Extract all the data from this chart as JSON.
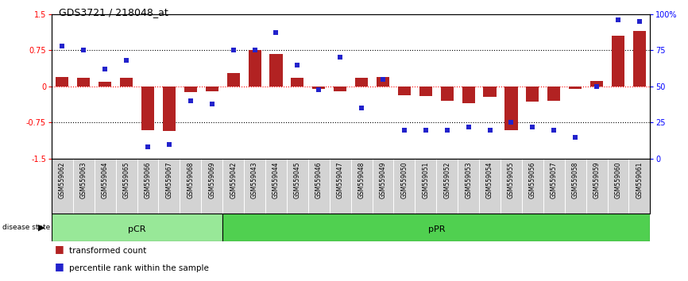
{
  "title": "GDS3721 / 218048_at",
  "samples": [
    "GSM559062",
    "GSM559063",
    "GSM559064",
    "GSM559065",
    "GSM559066",
    "GSM559067",
    "GSM559068",
    "GSM559069",
    "GSM559042",
    "GSM559043",
    "GSM559044",
    "GSM559045",
    "GSM559046",
    "GSM559047",
    "GSM559048",
    "GSM559049",
    "GSM559050",
    "GSM559051",
    "GSM559052",
    "GSM559053",
    "GSM559054",
    "GSM559055",
    "GSM559056",
    "GSM559057",
    "GSM559058",
    "GSM559059",
    "GSM559060",
    "GSM559061"
  ],
  "bar_values": [
    0.2,
    0.18,
    0.1,
    0.18,
    -0.9,
    -0.92,
    -0.12,
    -0.1,
    0.28,
    0.75,
    0.68,
    0.18,
    -0.05,
    -0.1,
    0.18,
    0.2,
    -0.18,
    -0.2,
    -0.3,
    -0.35,
    -0.22,
    -0.9,
    -0.32,
    -0.3,
    -0.05,
    0.12,
    1.05,
    1.15
  ],
  "percentile_values": [
    78,
    75,
    62,
    68,
    8,
    10,
    40,
    38,
    75,
    75,
    87,
    65,
    48,
    70,
    35,
    55,
    20,
    20,
    20,
    22,
    20,
    25,
    22,
    20,
    15,
    50,
    96,
    95
  ],
  "pCR_count": 8,
  "pPR_count": 20,
  "bar_color": "#b22222",
  "dot_color": "#2222cc",
  "pCR_color": "#98e898",
  "pPR_color": "#50d050",
  "label_bar": "transformed count",
  "label_dot": "percentile rank within the sample",
  "ylim_left": [
    -1.5,
    1.5
  ],
  "ylim_right": [
    0,
    100
  ],
  "left_yticks": [
    -1.5,
    -0.75,
    0,
    0.75,
    1.5
  ],
  "right_yticks": [
    0,
    25,
    50,
    75,
    100
  ],
  "right_yticklabels": [
    "0",
    "25",
    "50",
    "75",
    "100%"
  ]
}
